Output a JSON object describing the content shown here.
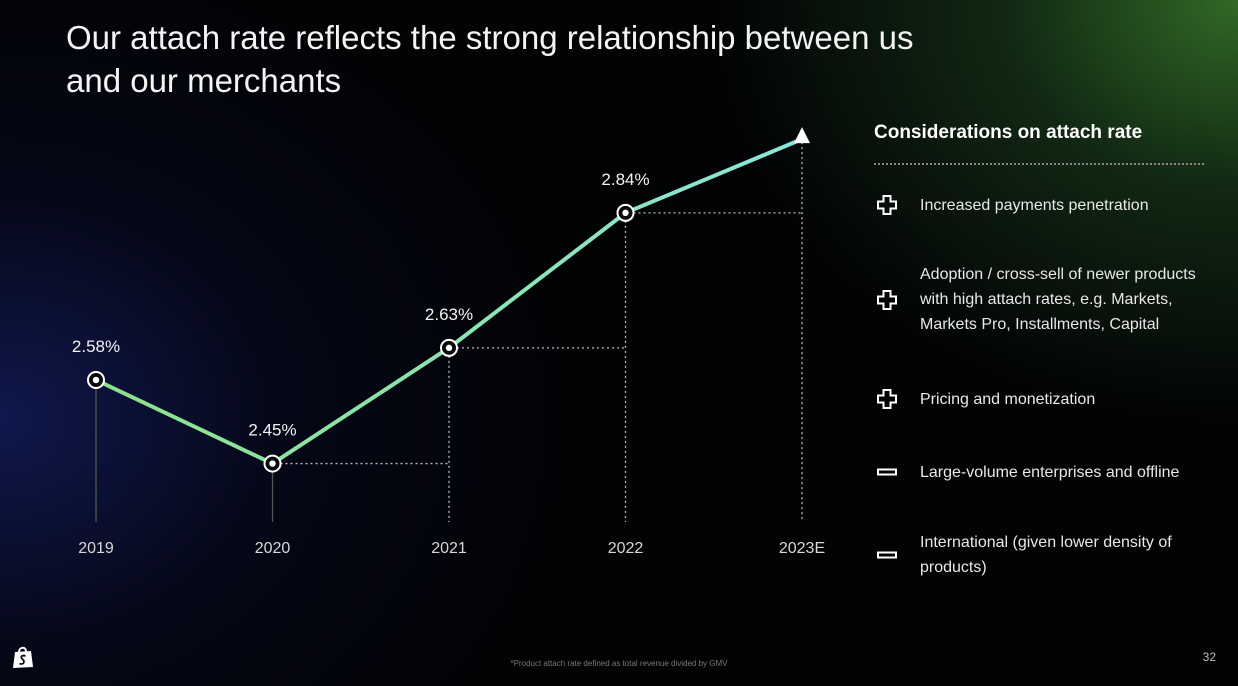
{
  "title": "Our attach rate reflects the strong relationship between us and our merchants",
  "chart_data": {
    "type": "line",
    "categories": [
      "2019",
      "2020",
      "2021",
      "2022",
      "2023E"
    ],
    "values": [
      2.58,
      2.45,
      2.63,
      2.84,
      null
    ],
    "data_labels": [
      "2.58%",
      "2.45%",
      "2.63%",
      "2.84%",
      ""
    ],
    "projection_note": "2023E shown as upward arrow continuing trend",
    "title": "",
    "xlabel": "",
    "ylabel": "",
    "ylim": [
      2.3,
      3.0
    ],
    "grid": false,
    "line_color": "#7ee8b8"
  },
  "considerations": {
    "title": "Considerations on attach rate",
    "items": [
      {
        "sign": "plus",
        "icon": "plus-icon",
        "text": "Increased payments penetration"
      },
      {
        "sign": "plus",
        "icon": "plus-icon",
        "text": "Adoption / cross-sell of newer products with high attach rates, e.g. Markets, Markets Pro, Installments, Capital"
      },
      {
        "sign": "plus",
        "icon": "plus-icon",
        "text": "Pricing and monetization"
      },
      {
        "sign": "minus",
        "icon": "minus-icon",
        "text": "Large-volume enterprises and offline"
      },
      {
        "sign": "minus",
        "icon": "minus-icon",
        "text": "International (given lower density of products)"
      }
    ]
  },
  "footnote": "*Product attach rate defined as total revenue divided by GMV",
  "page_number": "32",
  "logo_icon": "shopify-bag-icon"
}
